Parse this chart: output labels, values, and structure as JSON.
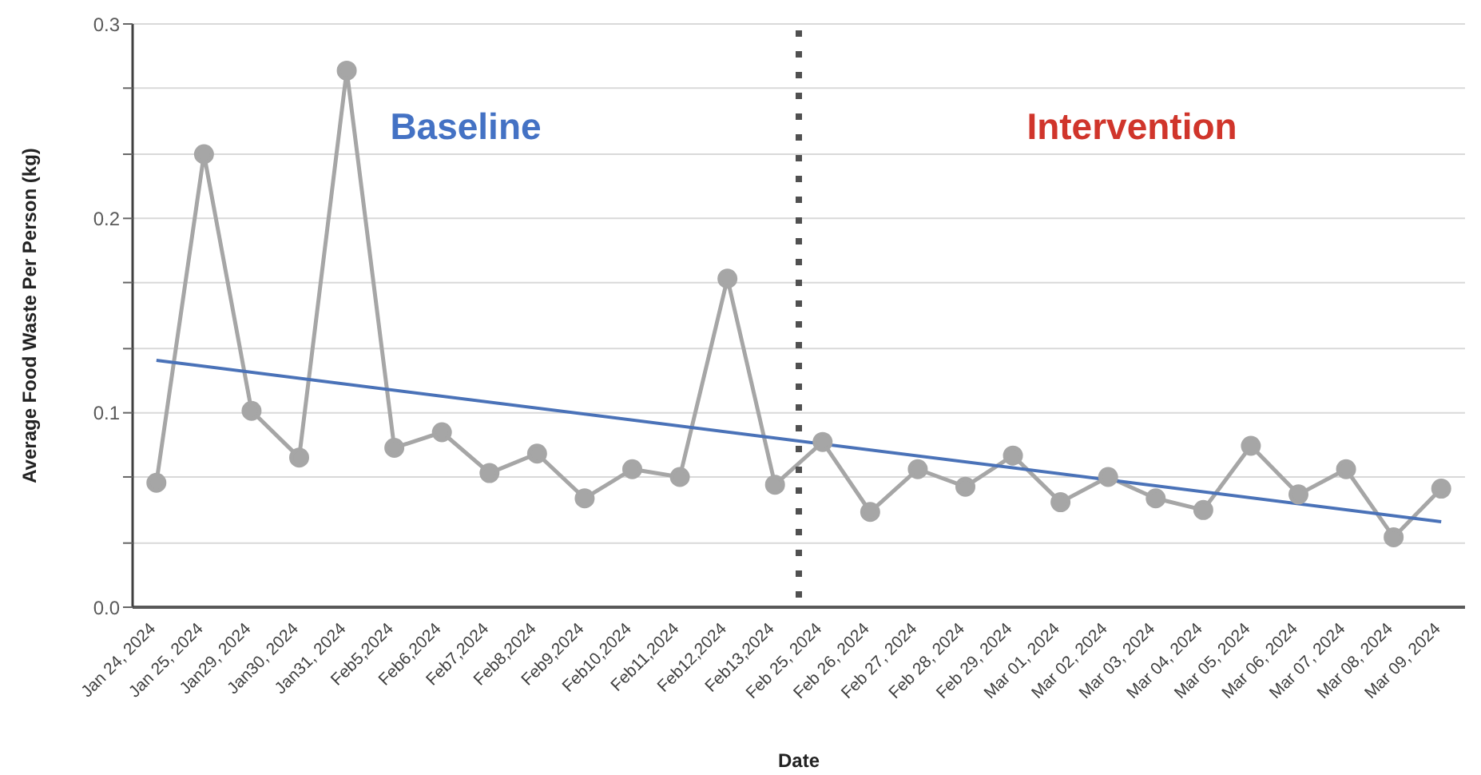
{
  "chart_data": {
    "type": "line",
    "xlabel": "Date",
    "ylabel": "Average Food Waste Per Person (kg)",
    "categories": [
      "Jan 24, 2024",
      "Jan 25, 2024",
      "Jan29, 2024",
      "Jan30, 2024",
      "Jan31, 2024",
      "Feb5,2024",
      "Feb6,2024",
      "Feb7,2024",
      "Feb8,2024",
      "Feb9,2024",
      "Feb10,2024",
      "Feb11,2024",
      "Feb12,2024",
      "Feb13,2024",
      "Feb 25, 2024",
      "Feb 26, 2024",
      "Feb 27, 2024",
      "Feb 28, 2024",
      "Feb 29, 2024",
      "Mar 01, 2024",
      "Mar 02, 2024",
      "Mar 03, 2024",
      "Mar 04, 2024",
      "Mar 05, 2024",
      "Mar 06, 2024",
      "Mar 07, 2024",
      "Mar 08, 2024",
      "Mar 09, 2024"
    ],
    "series": [
      {
        "color": "#a6a6a6",
        "marker": "circle",
        "values": [
          0.064,
          0.233,
          0.101,
          0.077,
          0.276,
          0.082,
          0.09,
          0.069,
          0.079,
          0.056,
          0.071,
          0.067,
          0.169,
          0.063,
          0.085,
          0.049,
          0.071,
          0.062,
          0.078,
          0.054,
          0.067,
          0.056,
          0.05,
          0.083,
          0.058,
          0.071,
          0.036,
          0.061
        ]
      },
      {
        "type": "line",
        "color": "#4a72b8",
        "marker": "none",
        "x": [
          "Jan 24, 2024",
          "Mar 09, 2024"
        ],
        "values": [
          0.127,
          0.044
        ]
      }
    ],
    "ylim": [
      0,
      0.3
    ],
    "yticks": [
      {
        "value": 0,
        "label": "0.0"
      },
      {
        "value": 0.033,
        "label": null
      },
      {
        "value": 0.067,
        "label": null
      },
      {
        "value": 0.1,
        "label": "0.1"
      },
      {
        "value": 0.133,
        "label": null
      },
      {
        "value": 0.167,
        "label": null
      },
      {
        "value": 0.2,
        "label": "0.2"
      },
      {
        "value": 0.233,
        "label": null
      },
      {
        "value": 0.267,
        "label": null
      },
      {
        "value": 0.3,
        "label": "0.3"
      }
    ],
    "grid": "y",
    "annotations": [
      "Baseline",
      "Intervention"
    ]
  }
}
